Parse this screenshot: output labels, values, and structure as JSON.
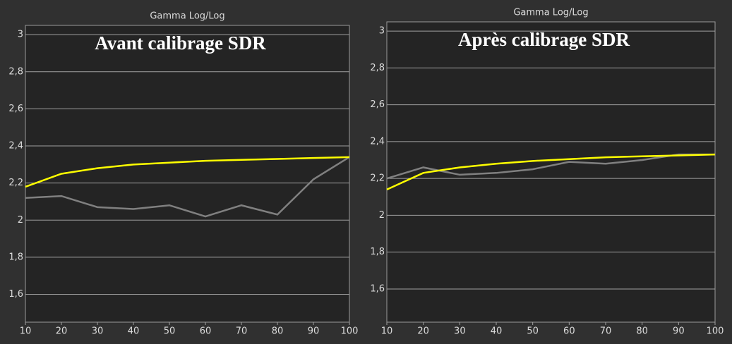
{
  "chart_data": [
    {
      "type": "line",
      "title": "Gamma Log/Log",
      "annotation": "Avant calibrage SDR",
      "x": [
        10,
        20,
        30,
        40,
        50,
        60,
        70,
        80,
        90,
        100
      ],
      "series": [
        {
          "color": "#808080",
          "values": [
            2.12,
            2.13,
            2.07,
            2.06,
            2.08,
            2.02,
            2.08,
            2.03,
            2.22,
            2.34
          ]
        },
        {
          "color": "#ffff00",
          "values": [
            2.18,
            2.25,
            2.28,
            2.3,
            2.31,
            2.32,
            2.325,
            2.33,
            2.335,
            2.34
          ]
        }
      ],
      "xlim": [
        10,
        100
      ],
      "xticks": [
        10,
        20,
        30,
        40,
        50,
        60,
        70,
        80,
        90,
        100
      ],
      "ylim": [
        1.45,
        3.05
      ],
      "yticks": [
        {
          "value": 1.6,
          "label": "1,6"
        },
        {
          "value": 1.8,
          "label": "1,8"
        },
        2,
        {
          "value": 2.2,
          "label": "2,2"
        },
        {
          "value": 2.4,
          "label": "2,4"
        },
        {
          "value": 2.6,
          "label": "2,6"
        },
        {
          "value": 2.8,
          "label": "2,8"
        },
        3
      ],
      "grid": true
    },
    {
      "type": "line",
      "title": "Gamma Log/Log",
      "annotation": "Après calibrage SDR",
      "x": [
        10,
        20,
        30,
        40,
        50,
        60,
        70,
        80,
        90,
        100
      ],
      "series": [
        {
          "color": "#808080",
          "values": [
            2.2,
            2.26,
            2.22,
            2.23,
            2.25,
            2.29,
            2.28,
            2.3,
            2.33,
            2.33
          ]
        },
        {
          "color": "#ffff00",
          "values": [
            2.14,
            2.23,
            2.26,
            2.28,
            2.295,
            2.305,
            2.315,
            2.32,
            2.325,
            2.33
          ]
        }
      ],
      "xlim": [
        10,
        100
      ],
      "xticks": [
        10,
        20,
        30,
        40,
        50,
        60,
        70,
        80,
        90,
        100
      ],
      "ylim": [
        1.42,
        3.05
      ],
      "yticks": [
        {
          "value": 1.6,
          "label": "1,6"
        },
        {
          "value": 1.8,
          "label": "1,8"
        },
        2,
        {
          "value": 2.2,
          "label": "2,2"
        },
        {
          "value": 2.4,
          "label": "2,4"
        },
        {
          "value": 2.6,
          "label": "2,6"
        },
        {
          "value": 2.8,
          "label": "2,8"
        },
        3
      ],
      "grid": true
    }
  ]
}
